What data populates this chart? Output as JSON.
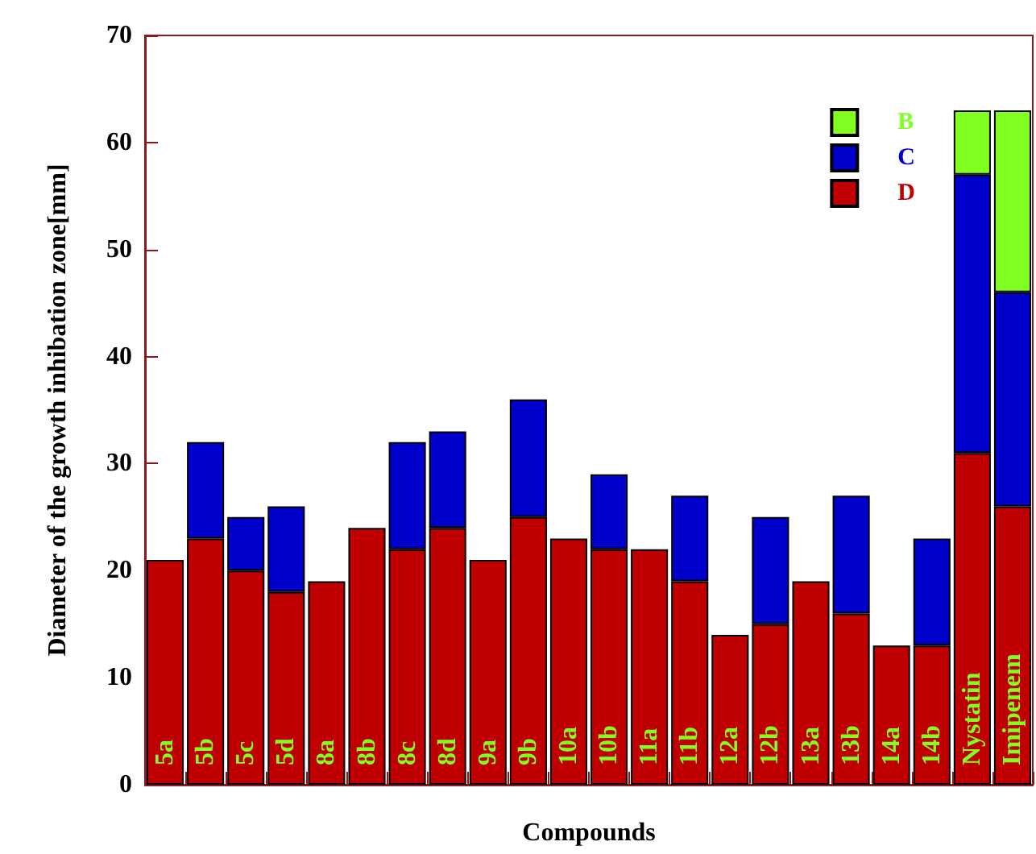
{
  "chart_data": {
    "type": "bar",
    "stacked": true,
    "xlabel": "Compounds",
    "ylabel": "Diameter of the growth inhibation zone[mm]",
    "categories": [
      "5a",
      "5b",
      "5c",
      "5d",
      "8a",
      "8b",
      "8c",
      "8d",
      "9a",
      "9b",
      "10a",
      "10b",
      "11a",
      "11b",
      "12a",
      "12b",
      "13a",
      "13b",
      "14a",
      "14b",
      "Nystatin",
      "Imipenem"
    ],
    "series": [
      {
        "name": "D",
        "color": "#c00000",
        "values": [
          21,
          23,
          20,
          18,
          19,
          24,
          22,
          24,
          21,
          25,
          23,
          22,
          22,
          19,
          14,
          15,
          19,
          16,
          13,
          13,
          31,
          26
        ]
      },
      {
        "name": "C",
        "color": "#0000cc",
        "values": [
          null,
          9,
          5,
          8,
          null,
          null,
          10,
          9,
          null,
          11,
          null,
          7,
          null,
          8,
          null,
          10,
          null,
          11,
          null,
          10,
          26,
          20
        ]
      },
      {
        "name": "B",
        "color": "#80ff20",
        "values": [
          null,
          null,
          null,
          null,
          null,
          null,
          null,
          null,
          null,
          null,
          null,
          null,
          null,
          null,
          null,
          null,
          null,
          null,
          null,
          null,
          6,
          17
        ]
      }
    ],
    "ylim": [
      0,
      70
    ],
    "yticks": [
      0,
      10,
      20,
      30,
      40,
      50,
      60,
      70
    ],
    "grid": false,
    "legend": "top right"
  }
}
